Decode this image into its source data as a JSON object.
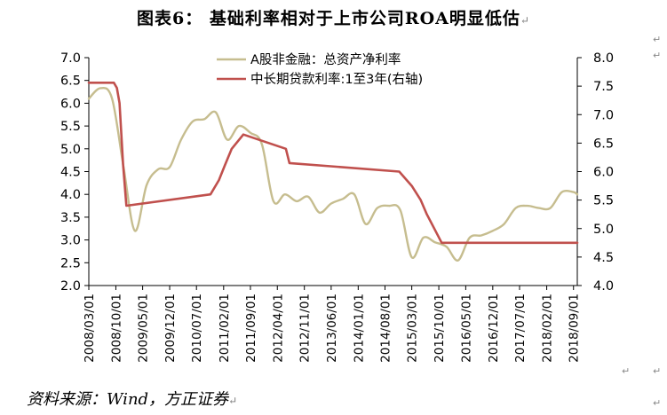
{
  "figure": {
    "title": "图表6： 基础利率相对于上市公司ROA明显低估",
    "paragraph_mark": "↵",
    "source": "资料来源：Wind，方正证券"
  },
  "chart_data": {
    "type": "line",
    "title": "图表6： 基础利率相对于上市公司ROA明显低估",
    "xlabel": "",
    "ylabel": "",
    "y2label": "",
    "ylim": [
      2.0,
      7.0
    ],
    "y2lim": [
      4.0,
      8.0
    ],
    "yticks": [
      "2.0",
      "2.5",
      "3.0",
      "3.5",
      "4.0",
      "4.5",
      "5.0",
      "5.5",
      "6.0",
      "6.5",
      "7.0"
    ],
    "y2ticks": [
      "4.0",
      "4.5",
      "5.0",
      "5.5",
      "6.0",
      "6.5",
      "7.0",
      "7.5",
      "8.0"
    ],
    "x_tick_labels": [
      "2008/03/01",
      "2008/10/01",
      "2009/05/01",
      "2009/12/01",
      "2010/07/01",
      "2011/02/01",
      "2011/09/01",
      "2012/04/01",
      "2012/11/01",
      "2013/06/01",
      "2014/01/01",
      "2014/08/01",
      "2015/03/01",
      "2015/10/01",
      "2016/05/01",
      "2016/12/01",
      "2017/07/01",
      "2018/02/01",
      "2018/09/01"
    ],
    "x_range": [
      "2008-03-01",
      "2018-10-01"
    ],
    "grid": false,
    "legend_position": "top-center",
    "series": [
      {
        "name": "A股非金融：总资产净利率",
        "axis": "left",
        "color": "#c6bd8f",
        "points": [
          [
            "2008-03-01",
            6.1
          ],
          [
            "2008-06-01",
            6.33
          ],
          [
            "2008-09-01",
            6.1
          ],
          [
            "2008-12-01",
            4.6
          ],
          [
            "2009-03-01",
            3.2
          ],
          [
            "2009-06-01",
            4.2
          ],
          [
            "2009-09-01",
            4.55
          ],
          [
            "2009-12-01",
            4.6
          ],
          [
            "2010-03-01",
            5.2
          ],
          [
            "2010-06-01",
            5.6
          ],
          [
            "2010-09-01",
            5.65
          ],
          [
            "2010-12-01",
            5.8
          ],
          [
            "2011-03-01",
            5.2
          ],
          [
            "2011-06-01",
            5.5
          ],
          [
            "2011-09-01",
            5.35
          ],
          [
            "2011-12-01",
            5.1
          ],
          [
            "2012-03-01",
            3.85
          ],
          [
            "2012-06-01",
            4.0
          ],
          [
            "2012-09-01",
            3.85
          ],
          [
            "2012-12-01",
            3.95
          ],
          [
            "2013-03-01",
            3.6
          ],
          [
            "2013-06-01",
            3.8
          ],
          [
            "2013-09-01",
            3.9
          ],
          [
            "2013-12-01",
            4.0
          ],
          [
            "2014-03-01",
            3.35
          ],
          [
            "2014-06-01",
            3.7
          ],
          [
            "2014-09-01",
            3.75
          ],
          [
            "2014-12-01",
            3.65
          ],
          [
            "2015-03-01",
            2.62
          ],
          [
            "2015-06-01",
            3.05
          ],
          [
            "2015-09-01",
            2.95
          ],
          [
            "2015-12-01",
            2.85
          ],
          [
            "2016-03-01",
            2.55
          ],
          [
            "2016-06-01",
            3.05
          ],
          [
            "2016-09-01",
            3.1
          ],
          [
            "2016-12-01",
            3.2
          ],
          [
            "2017-03-01",
            3.35
          ],
          [
            "2017-06-01",
            3.7
          ],
          [
            "2017-09-01",
            3.75
          ],
          [
            "2017-12-01",
            3.7
          ],
          [
            "2018-03-01",
            3.7
          ],
          [
            "2018-06-01",
            4.05
          ],
          [
            "2018-09-01",
            4.05
          ],
          [
            "2018-10-01",
            4.0
          ]
        ]
      },
      {
        "name": "中长期贷款利率:1至3年(右轴)",
        "axis": "right",
        "color": "#c0504d",
        "points": [
          [
            "2008-03-01",
            7.56
          ],
          [
            "2008-09-15",
            7.56
          ],
          [
            "2008-10-09",
            7.47
          ],
          [
            "2008-10-30",
            7.2
          ],
          [
            "2008-11-27",
            6.12
          ],
          [
            "2008-12-23",
            5.4
          ],
          [
            "2010-10-20",
            5.6
          ],
          [
            "2010-12-26",
            5.85
          ],
          [
            "2011-02-09",
            6.1
          ],
          [
            "2011-04-06",
            6.4
          ],
          [
            "2011-07-07",
            6.65
          ],
          [
            "2012-06-08",
            6.4
          ],
          [
            "2012-07-06",
            6.15
          ],
          [
            "2014-11-22",
            6.0
          ],
          [
            "2015-03-01",
            5.75
          ],
          [
            "2015-05-11",
            5.5
          ],
          [
            "2015-06-28",
            5.25
          ],
          [
            "2015-08-26",
            5.0
          ],
          [
            "2015-10-24",
            4.75
          ],
          [
            "2018-10-01",
            4.75
          ]
        ]
      }
    ]
  }
}
